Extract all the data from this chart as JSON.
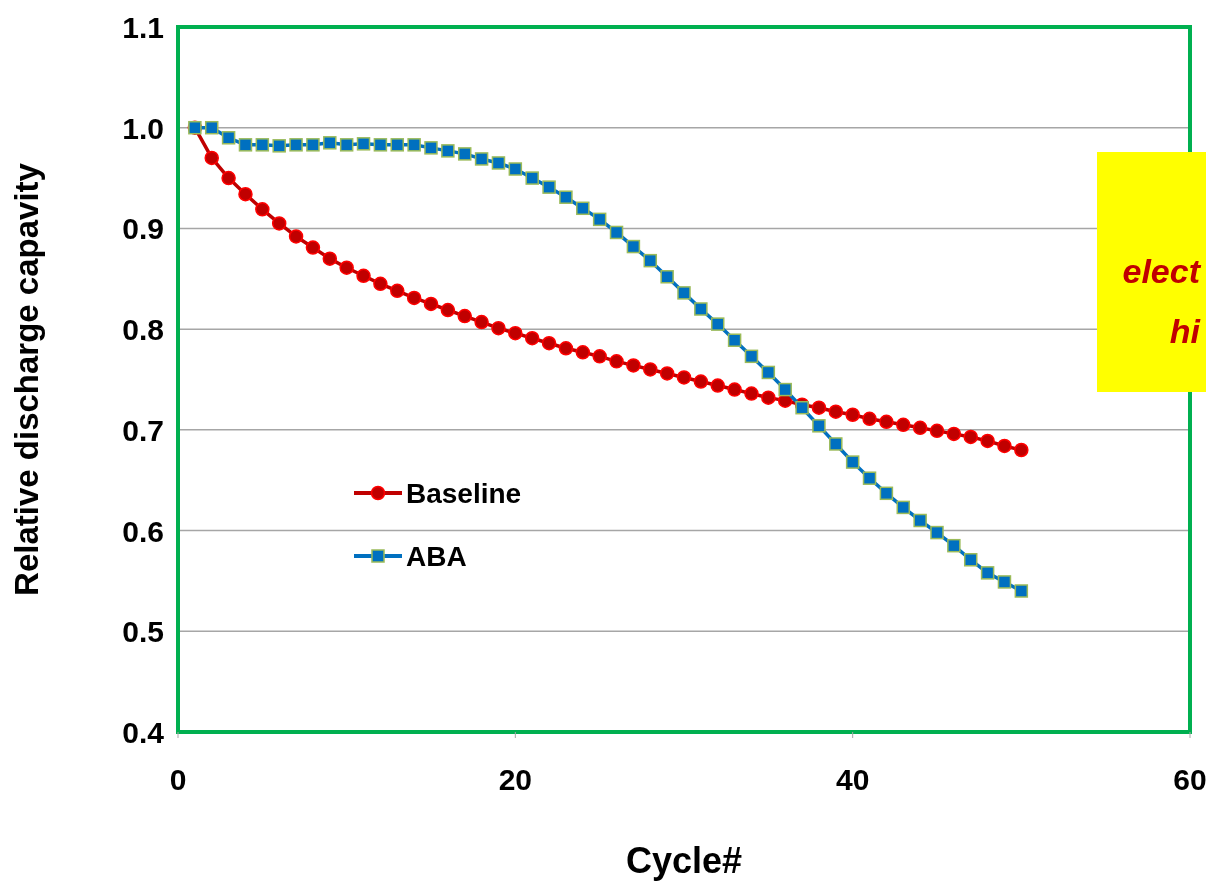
{
  "chart_data": {
    "type": "line",
    "xlabel": "Cycle#",
    "ylabel": "Relative discharge capavity",
    "xlim": [
      0,
      60
    ],
    "xticks": [
      0,
      20,
      40,
      60
    ],
    "ylim": [
      0.4,
      1.1
    ],
    "yticks": [
      {
        "value": 0.4,
        "label": "0.4"
      },
      {
        "value": 0.5,
        "label": "0.5"
      },
      {
        "value": 0.6,
        "label": "0.6"
      },
      {
        "value": 0.7,
        "label": "0.7"
      },
      {
        "value": 0.8,
        "label": "0.8"
      },
      {
        "value": 0.9,
        "label": "0.9"
      },
      {
        "value": 1.0,
        "label": "1.0"
      },
      {
        "value": 1.1,
        "label": "1.1"
      }
    ],
    "grid": "y",
    "legend": "left",
    "annotations": [
      "elect",
      "hi"
    ],
    "x": [
      1,
      2,
      3,
      4,
      5,
      6,
      7,
      8,
      9,
      10,
      11,
      12,
      13,
      14,
      15,
      16,
      17,
      18,
      19,
      20,
      21,
      22,
      23,
      24,
      25,
      26,
      27,
      28,
      29,
      30,
      31,
      32,
      33,
      34,
      35,
      36,
      37,
      38,
      39,
      40,
      41,
      42,
      43,
      44,
      45,
      46,
      47,
      48,
      49,
      50
    ],
    "series": [
      {
        "name": "Baseline",
        "color": "#c00000",
        "marker": "circle",
        "values": [
          1.0,
          0.97,
          0.95,
          0.934,
          0.919,
          0.905,
          0.892,
          0.881,
          0.87,
          0.861,
          0.853,
          0.845,
          0.838,
          0.831,
          0.825,
          0.819,
          0.813,
          0.807,
          0.801,
          0.796,
          0.791,
          0.786,
          0.781,
          0.777,
          0.773,
          0.768,
          0.764,
          0.76,
          0.756,
          0.752,
          0.748,
          0.744,
          0.74,
          0.736,
          0.732,
          0.729,
          0.725,
          0.722,
          0.718,
          0.715,
          0.711,
          0.708,
          0.705,
          0.702,
          0.699,
          0.696,
          0.693,
          0.689,
          0.684,
          0.68
        ]
      },
      {
        "name": "ABA",
        "color": "#0070c0",
        "marker": "square",
        "values": [
          1.0,
          1.0,
          0.99,
          0.983,
          0.983,
          0.982,
          0.983,
          0.983,
          0.985,
          0.983,
          0.984,
          0.983,
          0.983,
          0.983,
          0.98,
          0.977,
          0.974,
          0.969,
          0.965,
          0.959,
          0.95,
          0.941,
          0.931,
          0.92,
          0.909,
          0.896,
          0.882,
          0.868,
          0.852,
          0.836,
          0.82,
          0.805,
          0.789,
          0.773,
          0.757,
          0.74,
          0.722,
          0.704,
          0.686,
          0.668,
          0.652,
          0.637,
          0.623,
          0.61,
          0.598,
          0.585,
          0.571,
          0.558,
          0.549,
          0.54
        ]
      }
    ]
  }
}
